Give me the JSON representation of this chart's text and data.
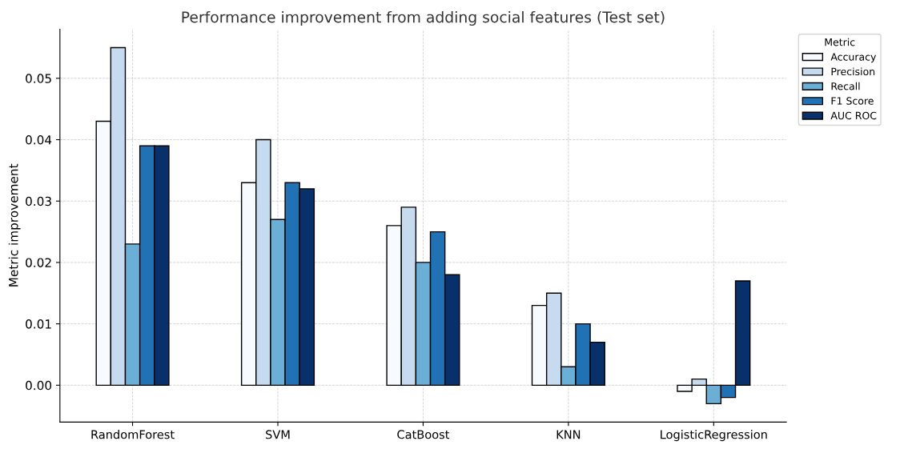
{
  "chart_data": {
    "type": "bar",
    "title": "Performance improvement from adding social features (Test set)",
    "ylabel": "Metric improvement",
    "legend_title": "Metric",
    "categories": [
      "RandomForest",
      "SVM",
      "CatBoost",
      "KNN",
      "LogisticRegression"
    ],
    "series": [
      {
        "name": "Accuracy",
        "color": "#f7fbff",
        "values": [
          0.043,
          0.033,
          0.026,
          0.013,
          -0.001
        ]
      },
      {
        "name": "Precision",
        "color": "#c6dbef",
        "values": [
          0.055,
          0.04,
          0.029,
          0.015,
          0.001
        ]
      },
      {
        "name": "Recall",
        "color": "#6baed6",
        "values": [
          0.023,
          0.027,
          0.02,
          0.003,
          -0.003
        ]
      },
      {
        "name": "F1 Score",
        "color": "#2171b5",
        "values": [
          0.039,
          0.033,
          0.025,
          0.01,
          -0.002
        ]
      },
      {
        "name": "AUC ROC",
        "color": "#08306b",
        "values": [
          0.039,
          0.032,
          0.018,
          0.007,
          0.017
        ]
      }
    ],
    "ylim": [
      -0.006,
      0.058
    ],
    "yticks": [
      {
        "value": 0,
        "label": "0.00"
      },
      {
        "value": 0.01,
        "label": "0.01"
      },
      {
        "value": 0.02,
        "label": "0.02"
      },
      {
        "value": 0.03,
        "label": "0.03"
      },
      {
        "value": 0.04,
        "label": "0.04"
      },
      {
        "value": 0.05,
        "label": "0.05"
      }
    ],
    "grid": true,
    "legend": "outside top right"
  }
}
